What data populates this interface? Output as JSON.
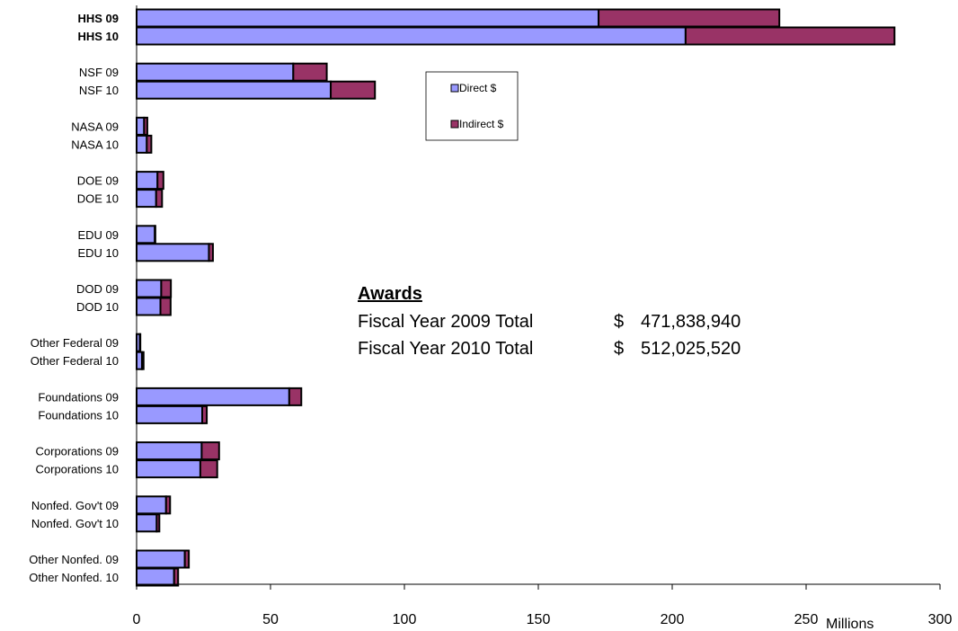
{
  "chart_data": {
    "type": "bar",
    "orientation": "horizontal",
    "stacked": true,
    "categories": [
      "HHS 09",
      "HHS 10",
      "NSF 09",
      "NSF 10",
      "NASA 09",
      "NASA 10",
      "DOE 09",
      "DOE 10",
      "EDU 09",
      "EDU 10",
      "DOD 09",
      "DOD 10",
      "Other Federal 09",
      "Other Federal 10",
      "Foundations 09",
      "Foundations 10",
      "Corporations 09",
      "Corporations 10",
      "Nonfed. Gov't 09",
      "Nonfed. Gov't 10",
      "Other Nonfed. 09",
      "Other Nonfed. 10"
    ],
    "bold_categories": [
      "HHS 09",
      "HHS 10"
    ],
    "series": [
      {
        "name": "Direct $",
        "color": "#9999ff",
        "values": [
          172.5,
          205,
          58.5,
          72.5,
          2.8,
          3.8,
          7.8,
          7.3,
          6.8,
          27,
          9.2,
          8.9,
          1.2,
          2,
          57,
          24.5,
          24.3,
          23.8,
          11,
          7.5,
          18,
          14
        ]
      },
      {
        "name": "Indirect $",
        "color": "#993366",
        "values": [
          67.5,
          78,
          12.5,
          16.5,
          1.2,
          1.7,
          2.2,
          2.2,
          0.2,
          1.5,
          3.6,
          3.8,
          0.2,
          0.6,
          4.5,
          1.7,
          6.5,
          6.3,
          1.5,
          1,
          1.5,
          1.5
        ]
      }
    ],
    "x_ticks": [
      "0",
      "50",
      "100",
      "150",
      "200",
      "250",
      "300"
    ],
    "xlim": [
      0,
      300
    ],
    "x_unit_label": "Millions",
    "legend": {
      "position": "top-center",
      "entries": [
        "Direct $",
        "Indirect $"
      ]
    },
    "grid": false
  },
  "awards": {
    "title": "Awards",
    "rows": [
      {
        "label": "Fiscal Year 2009 Total",
        "currency": "$",
        "amount": "471,838,940"
      },
      {
        "label": "Fiscal Year 2010 Total",
        "currency": "$",
        "amount": "512,025,520"
      }
    ]
  }
}
